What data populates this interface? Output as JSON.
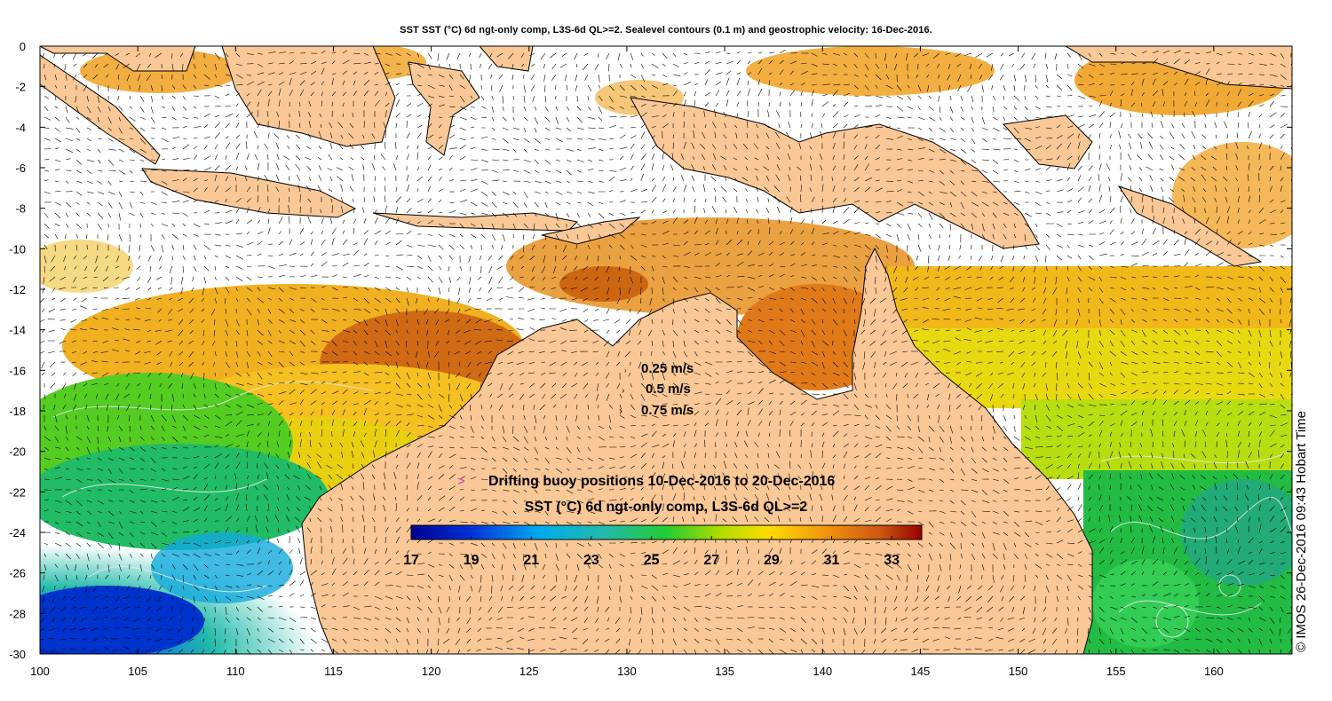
{
  "title": "SST SST (°C) 6d ngt-only comp, L3S-6d QL>=2. Sealevel contours (0.1 m) and geostrophic velocity: 16-Dec-2016.",
  "credit": "© IMOS 26-Dec-2016 09:43 Hobart Time",
  "axes": {
    "x_ticks": [
      "100",
      "105",
      "110",
      "115",
      "120",
      "125",
      "130",
      "135",
      "140",
      "145",
      "150",
      "155",
      "160"
    ],
    "y_ticks": [
      "0",
      "-2",
      "-4",
      "-6",
      "-8",
      "-10",
      "-12",
      "-14",
      "-16",
      "-18",
      "-20",
      "-22",
      "-24",
      "-26",
      "-28",
      "-30"
    ],
    "xlim": [
      100,
      164
    ],
    "ylim": [
      -30,
      0
    ]
  },
  "velocity_legend": {
    "items": [
      "0.25 m/s",
      "0.5 m/s",
      "0.75 m/s"
    ]
  },
  "buoy_legend": {
    "marker": ">",
    "marker_color": "#cc33cc",
    "label": "Drifting buoy positions 10-Dec-2016 to 20-Dec-2016"
  },
  "colorbar": {
    "title": "SST (°C) 6d ngt-only comp, L3S-6d QL>=2",
    "range": [
      17,
      34
    ],
    "tick_labels": [
      "17",
      "19",
      "21",
      "23",
      "25",
      "27",
      "29",
      "31",
      "33"
    ]
  },
  "colors": {
    "land": "#fac896",
    "no_data": "#ffffff",
    "contour": "#e8e8e8",
    "arrows": "#000000"
  }
}
